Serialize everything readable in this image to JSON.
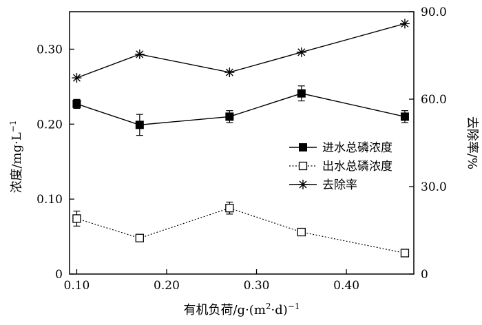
{
  "chart_data": {
    "type": "line",
    "title": "",
    "xlabel": "有机负荷/g·(m²·d)⁻¹",
    "xlabel_parts": {
      "main": "有机负荷/g·(m",
      "sup1": "2",
      "mid": "·d)",
      "sup2": "−1"
    },
    "ylabel_left": "浓度/mg·L⁻¹",
    "ylabel_left_parts": {
      "main": "浓度/mg·L",
      "sup": "−1"
    },
    "ylabel_right": "去除率/%",
    "xlim": [
      0.092,
      0.475
    ],
    "ylim_left": [
      0,
      0.35
    ],
    "ylim_right": [
      0,
      90
    ],
    "x_ticks": [
      0.1,
      0.2,
      0.3,
      0.4
    ],
    "x_tick_labels": [
      "0.10",
      "0.20",
      "0.30",
      "0.40"
    ],
    "y_left_ticks": [
      0,
      0.1,
      0.2,
      0.3
    ],
    "y_left_tick_labels": [
      "0",
      "0.10",
      "0.20",
      "0.30"
    ],
    "y_right_ticks": [
      0,
      30,
      60,
      90
    ],
    "y_right_tick_labels": [
      "0",
      "30.0",
      "60.0",
      "90.0"
    ],
    "x": [
      0.1,
      0.17,
      0.27,
      0.35,
      0.465
    ],
    "series": [
      {
        "name": "进水总磷浓度",
        "axis": "left",
        "marker": "filled-square",
        "line": "solid",
        "values": [
          0.227,
          0.199,
          0.21,
          0.241,
          0.21
        ],
        "errors": [
          0.006,
          0.014,
          0.008,
          0.01,
          0.008
        ]
      },
      {
        "name": "出水总磷浓度",
        "axis": "left",
        "marker": "open-square",
        "line": "dotted",
        "values": [
          0.074,
          0.048,
          0.088,
          0.056,
          0.028
        ],
        "errors": [
          0.01,
          0.004,
          0.008,
          0.004,
          0.004
        ]
      },
      {
        "name": "去除率",
        "axis": "right",
        "marker": "asterisk",
        "line": "solid",
        "values": [
          67.3,
          75.4,
          69.2,
          76.1,
          85.9
        ],
        "errors": [
          0,
          0,
          0,
          0,
          0
        ]
      }
    ],
    "legend_position": "right-middle",
    "grid": false
  }
}
